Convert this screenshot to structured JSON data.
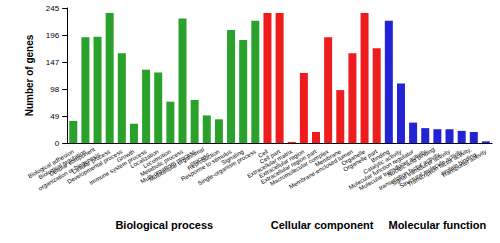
{
  "chart_data": {
    "type": "bar",
    "y_label": "Number of genes",
    "categories": [
      "Biological adhesion",
      "Biological regulation",
      "Cellular component organization or biogenesis",
      "Cellular process",
      "Developmental process",
      "Growth",
      "Immune system process",
      "Localization",
      "Locomotion",
      "Metabolic process",
      "Multi-organism process",
      "Multicellular organismal process",
      "Reproduction",
      "Response to stimulus",
      "Signaling",
      "Single-organism process",
      "Cell",
      "Cell part",
      "Extracellular matrix",
      "Extracellular region",
      "Extracellular region part",
      "Macromolecular complex",
      "Membrane",
      "Membrane-enclosed lumen",
      "Organelle",
      "Organelle part",
      "Binding",
      "Catalytic activity",
      "Molecular function regulator",
      "Molecular transducer activity",
      "Nucleic acid binding transcription factor activity",
      "Signal transducer activity",
      "Structural molecule activity",
      "Transcription factor activity, protein binding",
      "Transporter activity"
    ],
    "series": [
      {
        "name": "Biological process",
        "color": "#2aa12a",
        "values": [
          40,
          192,
          193,
          236,
          163,
          35,
          133,
          128,
          75,
          226,
          78,
          50,
          43,
          205,
          187,
          222,
          null,
          null,
          null,
          null,
          null,
          null,
          null,
          null,
          null,
          null,
          null,
          null,
          null,
          null,
          null,
          null,
          null,
          null,
          null
        ]
      },
      {
        "name": "Cellular component",
        "color": "#ee1c1c",
        "values": [
          null,
          null,
          null,
          null,
          null,
          null,
          null,
          null,
          null,
          null,
          null,
          null,
          null,
          null,
          null,
          null,
          236,
          236,
          2,
          127,
          20,
          192,
          96,
          163,
          236,
          172,
          null,
          null,
          null,
          null,
          null,
          null,
          null,
          null,
          null
        ]
      },
      {
        "name": "Molecular function",
        "color": "#2323d4",
        "values": [
          null,
          null,
          null,
          null,
          null,
          null,
          null,
          null,
          null,
          null,
          null,
          null,
          null,
          null,
          null,
          null,
          null,
          null,
          null,
          null,
          null,
          null,
          null,
          null,
          null,
          null,
          222,
          108,
          37,
          27,
          25,
          25,
          22,
          20,
          3
        ]
      }
    ],
    "stacked": true,
    "ylim": [
      0,
      245
    ],
    "yticks": [
      0,
      49,
      98,
      147,
      196,
      245
    ],
    "grid": false
  }
}
